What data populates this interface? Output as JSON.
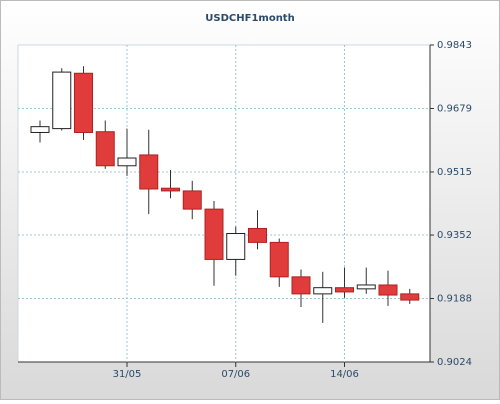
{
  "chart_data": {
    "type": "candlestick",
    "title": "USDCHF1month",
    "categories": [
      null,
      null,
      null,
      null,
      "31/05",
      null,
      null,
      null,
      null,
      "07/06",
      null,
      null,
      null,
      null,
      "14/06",
      null,
      null,
      null
    ],
    "open": [
      0.9617,
      0.9627,
      0.977,
      0.9619,
      0.9531,
      0.9559,
      0.9473,
      0.9466,
      0.9419,
      0.9289,
      0.9369,
      0.9333,
      0.9244,
      0.92,
      0.9216,
      0.9213,
      0.9223,
      0.92
    ],
    "high": [
      0.9648,
      0.9783,
      0.9788,
      0.9648,
      0.9627,
      0.9624,
      0.952,
      0.9492,
      0.944,
      0.9374,
      0.9416,
      0.9343,
      0.9263,
      0.9257,
      0.9268,
      0.9268,
      0.926,
      0.9213
    ],
    "low": [
      0.9591,
      0.9622,
      0.9598,
      0.9523,
      0.9505,
      0.9406,
      0.9447,
      0.9393,
      0.9221,
      0.9247,
      0.9315,
      0.9218,
      0.9166,
      0.9125,
      0.919,
      0.92,
      0.9169,
      0.9174
    ],
    "close": [
      0.9632,
      0.9773,
      0.9617,
      0.9531,
      0.9551,
      0.9471,
      0.9466,
      0.9419,
      0.9289,
      0.9356,
      0.9333,
      0.9244,
      0.92,
      0.9216,
      0.9205,
      0.9223,
      0.9197,
      0.9184
    ],
    "up_color": "#ffffff",
    "down_color": "#e03c3c",
    "ylim": [
      0.9024,
      0.9843
    ],
    "yticks": [
      0.9024,
      0.9188,
      0.9352,
      0.9515,
      0.9679,
      0.9843
    ],
    "grid": true
  }
}
